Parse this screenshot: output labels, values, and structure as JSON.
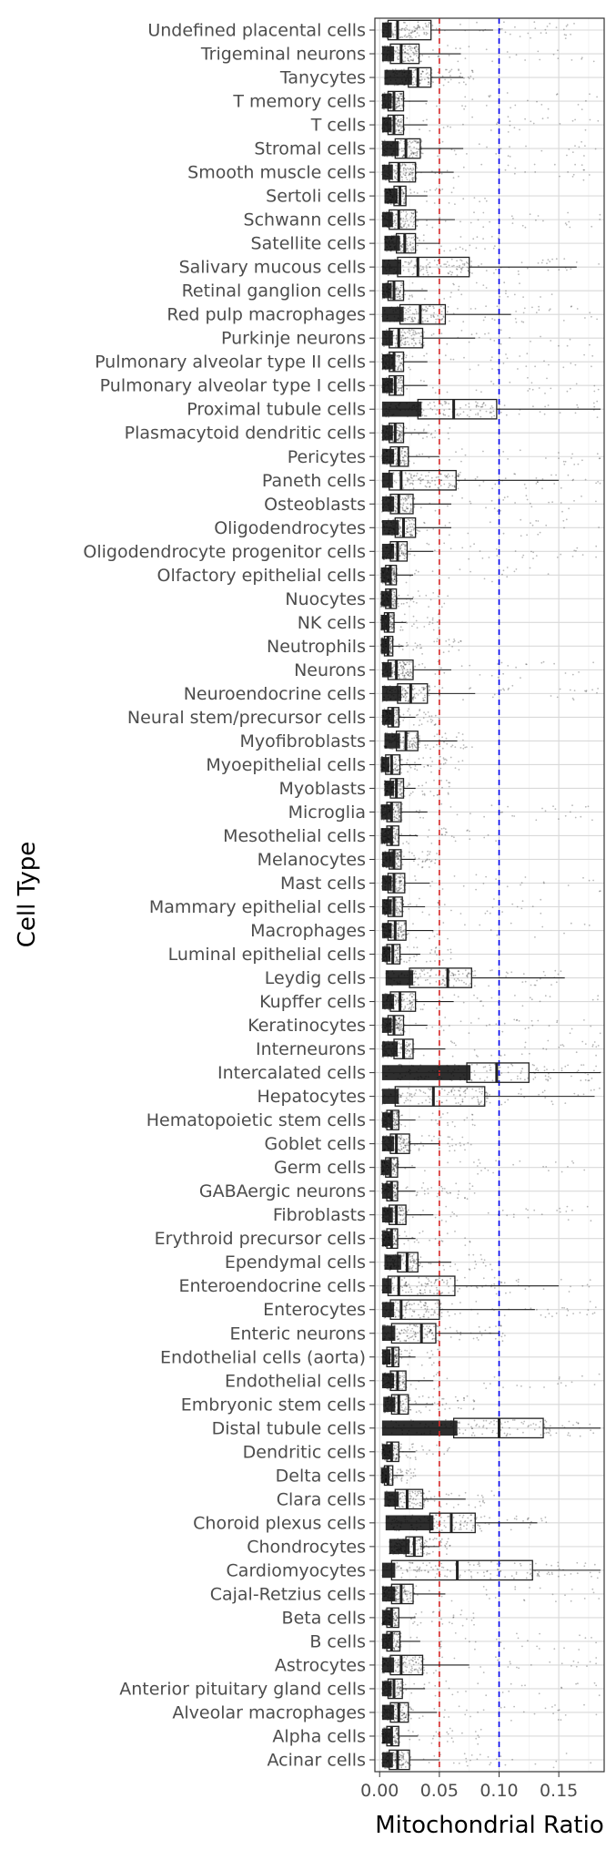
{
  "chart_data": {
    "type": "boxplot",
    "orientation": "horizontal",
    "xlabel": "Mitochondrial Ratio",
    "ylabel": "Cell Type",
    "xlim": [
      -0.004,
      0.188
    ],
    "x_ticks": [
      0.0,
      0.05,
      0.1,
      0.15
    ],
    "x_tick_labels": [
      "0.00",
      "0.05",
      "0.10",
      "0.15"
    ],
    "reference_lines": [
      {
        "x": 0.05,
        "color": "#d62728",
        "style": "dashed"
      },
      {
        "x": 0.1,
        "color": "#0000ee",
        "style": "dashed"
      }
    ],
    "grid": true,
    "legend": "none",
    "categories": [
      "Undefined placental cells",
      "Trigeminal neurons",
      "Tanycytes",
      "T memory cells",
      "T cells",
      "Stromal cells",
      "Smooth muscle cells",
      "Sertoli cells",
      "Schwann cells",
      "Satellite cells",
      "Salivary mucous cells",
      "Retinal ganglion cells",
      "Red pulp macrophages",
      "Purkinje neurons",
      "Pulmonary alveolar type II cells",
      "Pulmonary alveolar type I cells",
      "Proximal tubule cells",
      "Plasmacytoid dendritic cells",
      "Pericytes",
      "Paneth cells",
      "Osteoblasts",
      "Oligodendrocytes",
      "Oligodendrocyte progenitor cells",
      "Olfactory epithelial cells",
      "Nuocytes",
      "NK cells",
      "Neutrophils",
      "Neurons",
      "Neuroendocrine cells",
      "Neural stem/precursor cells",
      "Myofibroblasts",
      "Myoepithelial cells",
      "Myoblasts",
      "Microglia",
      "Mesothelial cells",
      "Melanocytes",
      "Mast cells",
      "Mammary epithelial cells",
      "Macrophages",
      "Luminal epithelial cells",
      "Leydig cells",
      "Kupffer cells",
      "Keratinocytes",
      "Interneurons",
      "Intercalated cells",
      "Hepatocytes",
      "Hematopoietic stem cells",
      "Goblet cells",
      "Germ cells",
      "GABAergic neurons",
      "Fibroblasts",
      "Erythroid precursor cells",
      "Ependymal cells",
      "Enteroendocrine cells",
      "Enterocytes",
      "Enteric neurons",
      "Endothelial cells (aorta)",
      "Endothelial cells",
      "Embryonic stem cells",
      "Distal tubule cells",
      "Dendritic cells",
      "Delta cells",
      "Clara cells",
      "Choroid plexus cells",
      "Chondrocytes",
      "Cardiomyocytes",
      "Cajal-Retzius cells",
      "Beta cells",
      "B cells",
      "Astrocytes",
      "Anterior pituitary gland cells",
      "Alveolar macrophages",
      "Alpha cells",
      "Acinar cells"
    ],
    "boxes": [
      {
        "q1": 0.007,
        "median": 0.015,
        "q3": 0.043,
        "wmin": 0.002,
        "wmax": 0.095,
        "spread": 0.185
      },
      {
        "q1": 0.009,
        "median": 0.018,
        "q3": 0.033,
        "wmin": 0.002,
        "wmax": 0.068,
        "spread": 0.185
      },
      {
        "q1": 0.024,
        "median": 0.032,
        "q3": 0.043,
        "wmin": 0.004,
        "wmax": 0.07,
        "spread": 0.08
      },
      {
        "q1": 0.007,
        "median": 0.012,
        "q3": 0.02,
        "wmin": 0.002,
        "wmax": 0.04,
        "spread": 0.185
      },
      {
        "q1": 0.007,
        "median": 0.012,
        "q3": 0.02,
        "wmin": 0.002,
        "wmax": 0.04,
        "spread": 0.185
      },
      {
        "q1": 0.013,
        "median": 0.022,
        "q3": 0.034,
        "wmin": 0.002,
        "wmax": 0.07,
        "spread": 0.185
      },
      {
        "q1": 0.008,
        "median": 0.016,
        "q3": 0.03,
        "wmin": 0.002,
        "wmax": 0.062,
        "spread": 0.185
      },
      {
        "q1": 0.012,
        "median": 0.017,
        "q3": 0.022,
        "wmin": 0.004,
        "wmax": 0.04,
        "spread": 0.1
      },
      {
        "q1": 0.008,
        "median": 0.016,
        "q3": 0.03,
        "wmin": 0.002,
        "wmax": 0.063,
        "spread": 0.185
      },
      {
        "q1": 0.014,
        "median": 0.021,
        "q3": 0.03,
        "wmin": 0.004,
        "wmax": 0.05,
        "spread": 0.1
      },
      {
        "q1": 0.015,
        "median": 0.032,
        "q3": 0.075,
        "wmin": 0.002,
        "wmax": 0.165,
        "spread": 0.185
      },
      {
        "q1": 0.007,
        "median": 0.012,
        "q3": 0.02,
        "wmin": 0.002,
        "wmax": 0.04,
        "spread": 0.15
      },
      {
        "q1": 0.017,
        "median": 0.034,
        "q3": 0.055,
        "wmin": 0.002,
        "wmax": 0.11,
        "spread": 0.185
      },
      {
        "q1": 0.008,
        "median": 0.016,
        "q3": 0.036,
        "wmin": 0.002,
        "wmax": 0.08,
        "spread": 0.185
      },
      {
        "q1": 0.008,
        "median": 0.012,
        "q3": 0.02,
        "wmin": 0.002,
        "wmax": 0.04,
        "spread": 0.185
      },
      {
        "q1": 0.008,
        "median": 0.013,
        "q3": 0.02,
        "wmin": 0.002,
        "wmax": 0.04,
        "spread": 0.185
      },
      {
        "q1": 0.032,
        "median": 0.062,
        "q3": 0.098,
        "wmin": 0.002,
        "wmax": 0.185,
        "spread": 0.185
      },
      {
        "q1": 0.008,
        "median": 0.013,
        "q3": 0.02,
        "wmin": 0.002,
        "wmax": 0.04,
        "spread": 0.06
      },
      {
        "q1": 0.009,
        "median": 0.016,
        "q3": 0.024,
        "wmin": 0.002,
        "wmax": 0.05,
        "spread": 0.185
      },
      {
        "q1": 0.008,
        "median": 0.018,
        "q3": 0.064,
        "wmin": 0.002,
        "wmax": 0.15,
        "spread": 0.185
      },
      {
        "q1": 0.009,
        "median": 0.016,
        "q3": 0.028,
        "wmin": 0.002,
        "wmax": 0.06,
        "spread": 0.185
      },
      {
        "q1": 0.013,
        "median": 0.02,
        "q3": 0.03,
        "wmin": 0.002,
        "wmax": 0.06,
        "spread": 0.185
      },
      {
        "q1": 0.009,
        "median": 0.015,
        "q3": 0.023,
        "wmin": 0.002,
        "wmax": 0.045,
        "spread": 0.185
      },
      {
        "q1": 0.005,
        "median": 0.009,
        "q3": 0.014,
        "wmin": 0.001,
        "wmax": 0.028,
        "spread": 0.15
      },
      {
        "q1": 0.005,
        "median": 0.009,
        "q3": 0.014,
        "wmin": 0.001,
        "wmax": 0.028,
        "spread": 0.06
      },
      {
        "q1": 0.004,
        "median": 0.007,
        "q3": 0.012,
        "wmin": 0.001,
        "wmax": 0.022,
        "spread": 0.05
      },
      {
        "q1": 0.004,
        "median": 0.007,
        "q3": 0.011,
        "wmin": 0.001,
        "wmax": 0.02,
        "spread": 0.07
      },
      {
        "q1": 0.007,
        "median": 0.014,
        "q3": 0.028,
        "wmin": 0.002,
        "wmax": 0.06,
        "spread": 0.185
      },
      {
        "q1": 0.015,
        "median": 0.026,
        "q3": 0.04,
        "wmin": 0.002,
        "wmax": 0.08,
        "spread": 0.185
      },
      {
        "q1": 0.007,
        "median": 0.011,
        "q3": 0.016,
        "wmin": 0.002,
        "wmax": 0.03,
        "spread": 0.05
      },
      {
        "q1": 0.014,
        "median": 0.022,
        "q3": 0.032,
        "wmin": 0.004,
        "wmax": 0.065,
        "spread": 0.08
      },
      {
        "q1": 0.005,
        "median": 0.01,
        "q3": 0.017,
        "wmin": 0.001,
        "wmax": 0.035,
        "spread": 0.07
      },
      {
        "q1": 0.009,
        "median": 0.014,
        "q3": 0.02,
        "wmin": 0.004,
        "wmax": 0.03,
        "spread": 0.06
      },
      {
        "q1": 0.006,
        "median": 0.01,
        "q3": 0.018,
        "wmin": 0.001,
        "wmax": 0.04,
        "spread": 0.185
      },
      {
        "q1": 0.006,
        "median": 0.01,
        "q3": 0.016,
        "wmin": 0.001,
        "wmax": 0.032,
        "spread": 0.1
      },
      {
        "q1": 0.008,
        "median": 0.012,
        "q3": 0.018,
        "wmin": 0.002,
        "wmax": 0.03,
        "spread": 0.05
      },
      {
        "q1": 0.007,
        "median": 0.012,
        "q3": 0.021,
        "wmin": 0.002,
        "wmax": 0.042,
        "spread": 0.185
      },
      {
        "q1": 0.007,
        "median": 0.012,
        "q3": 0.019,
        "wmin": 0.002,
        "wmax": 0.038,
        "spread": 0.14
      },
      {
        "q1": 0.007,
        "median": 0.013,
        "q3": 0.022,
        "wmin": 0.002,
        "wmax": 0.045,
        "spread": 0.185
      },
      {
        "q1": 0.006,
        "median": 0.011,
        "q3": 0.017,
        "wmin": 0.002,
        "wmax": 0.034,
        "spread": 0.06
      },
      {
        "q1": 0.025,
        "median": 0.057,
        "q3": 0.077,
        "wmin": 0.005,
        "wmax": 0.155,
        "spread": 0.16
      },
      {
        "q1": 0.009,
        "median": 0.017,
        "q3": 0.03,
        "wmin": 0.002,
        "wmax": 0.062,
        "spread": 0.185
      },
      {
        "q1": 0.007,
        "median": 0.012,
        "q3": 0.02,
        "wmin": 0.002,
        "wmax": 0.04,
        "spread": 0.185
      },
      {
        "q1": 0.012,
        "median": 0.02,
        "q3": 0.028,
        "wmin": 0.002,
        "wmax": 0.055,
        "spread": 0.185
      },
      {
        "q1": 0.073,
        "median": 0.098,
        "q3": 0.125,
        "wmin": 0.002,
        "wmax": 0.185,
        "spread": 0.185
      },
      {
        "q1": 0.013,
        "median": 0.045,
        "q3": 0.088,
        "wmin": 0.002,
        "wmax": 0.18,
        "spread": 0.185
      },
      {
        "q1": 0.006,
        "median": 0.01,
        "q3": 0.016,
        "wmin": 0.002,
        "wmax": 0.03,
        "spread": 0.08
      },
      {
        "q1": 0.009,
        "median": 0.014,
        "q3": 0.025,
        "wmin": 0.002,
        "wmax": 0.05,
        "spread": 0.08
      },
      {
        "q1": 0.005,
        "median": 0.009,
        "q3": 0.015,
        "wmin": 0.001,
        "wmax": 0.03,
        "spread": 0.185
      },
      {
        "q1": 0.006,
        "median": 0.01,
        "q3": 0.015,
        "wmin": 0.002,
        "wmax": 0.03,
        "spread": 0.08
      },
      {
        "q1": 0.008,
        "median": 0.014,
        "q3": 0.022,
        "wmin": 0.002,
        "wmax": 0.045,
        "spread": 0.185
      },
      {
        "q1": 0.006,
        "median": 0.01,
        "q3": 0.015,
        "wmin": 0.002,
        "wmax": 0.03,
        "spread": 0.08
      },
      {
        "q1": 0.015,
        "median": 0.023,
        "q3": 0.032,
        "wmin": 0.004,
        "wmax": 0.06,
        "spread": 0.1
      },
      {
        "q1": 0.007,
        "median": 0.016,
        "q3": 0.063,
        "wmin": 0.002,
        "wmax": 0.15,
        "spread": 0.185
      },
      {
        "q1": 0.009,
        "median": 0.018,
        "q3": 0.05,
        "wmin": 0.002,
        "wmax": 0.13,
        "spread": 0.185
      },
      {
        "q1": 0.01,
        "median": 0.035,
        "q3": 0.047,
        "wmin": 0.002,
        "wmax": 0.1,
        "spread": 0.11
      },
      {
        "q1": 0.006,
        "median": 0.011,
        "q3": 0.016,
        "wmin": 0.002,
        "wmax": 0.03,
        "spread": 0.05
      },
      {
        "q1": 0.009,
        "median": 0.015,
        "q3": 0.022,
        "wmin": 0.002,
        "wmax": 0.045,
        "spread": 0.185
      },
      {
        "q1": 0.01,
        "median": 0.016,
        "q3": 0.024,
        "wmin": 0.003,
        "wmax": 0.045,
        "spread": 0.08
      },
      {
        "q1": 0.062,
        "median": 0.1,
        "q3": 0.137,
        "wmin": 0.002,
        "wmax": 0.185,
        "spread": 0.185
      },
      {
        "q1": 0.006,
        "median": 0.01,
        "q3": 0.016,
        "wmin": 0.002,
        "wmax": 0.03,
        "spread": 0.06
      },
      {
        "q1": 0.004,
        "median": 0.007,
        "q3": 0.011,
        "wmin": 0.001,
        "wmax": 0.02,
        "spread": 0.03
      },
      {
        "q1": 0.013,
        "median": 0.023,
        "q3": 0.036,
        "wmin": 0.004,
        "wmax": 0.072,
        "spread": 0.1
      },
      {
        "q1": 0.042,
        "median": 0.06,
        "q3": 0.08,
        "wmin": 0.005,
        "wmax": 0.132,
        "spread": 0.14
      },
      {
        "q1": 0.022,
        "median": 0.029,
        "q3": 0.036,
        "wmin": 0.008,
        "wmax": 0.05,
        "spread": 0.06
      },
      {
        "q1": 0.01,
        "median": 0.065,
        "q3": 0.128,
        "wmin": 0.002,
        "wmax": 0.185,
        "spread": 0.185
      },
      {
        "q1": 0.01,
        "median": 0.018,
        "q3": 0.028,
        "wmin": 0.002,
        "wmax": 0.055,
        "spread": 0.185
      },
      {
        "q1": 0.006,
        "median": 0.01,
        "q3": 0.016,
        "wmin": 0.002,
        "wmax": 0.03,
        "spread": 0.08
      },
      {
        "q1": 0.006,
        "median": 0.01,
        "q3": 0.017,
        "wmin": 0.002,
        "wmax": 0.034,
        "spread": 0.185
      },
      {
        "q1": 0.009,
        "median": 0.018,
        "q3": 0.036,
        "wmin": 0.002,
        "wmax": 0.075,
        "spread": 0.185
      },
      {
        "q1": 0.007,
        "median": 0.012,
        "q3": 0.019,
        "wmin": 0.002,
        "wmax": 0.038,
        "spread": 0.185
      },
      {
        "q1": 0.009,
        "median": 0.016,
        "q3": 0.024,
        "wmin": 0.002,
        "wmax": 0.048,
        "spread": 0.185
      },
      {
        "q1": 0.006,
        "median": 0.01,
        "q3": 0.016,
        "wmin": 0.002,
        "wmax": 0.032,
        "spread": 0.09
      },
      {
        "q1": 0.008,
        "median": 0.015,
        "q3": 0.025,
        "wmin": 0.002,
        "wmax": 0.05,
        "spread": 0.185
      }
    ]
  }
}
